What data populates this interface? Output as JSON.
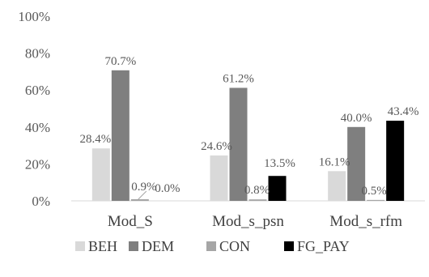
{
  "chart_data": {
    "type": "bar",
    "title": "",
    "xlabel": "",
    "ylabel": "",
    "ylim": [
      0,
      100
    ],
    "ytick_step": 20,
    "ytick_labels": [
      "0%",
      "20%",
      "40%",
      "60%",
      "80%",
      "100%"
    ],
    "grid": false,
    "legend": "bottom",
    "categories": [
      "Mod_S",
      "Mod_s_psn",
      "Mod_s_rfm"
    ],
    "series": [
      {
        "name": "BEH",
        "color": "#d9d9d9",
        "values": [
          28.4,
          24.6,
          16.1
        ],
        "labels": [
          "28.4%",
          "24.6%",
          "16.1%"
        ]
      },
      {
        "name": "DEM",
        "color": "#7f7f7f",
        "values": [
          70.7,
          61.2,
          40.0
        ],
        "labels": [
          "70.7%",
          "61.2%",
          "40.0%"
        ]
      },
      {
        "name": "CON",
        "color": "#a6a6a6",
        "values": [
          0.9,
          0.8,
          0.5
        ],
        "labels": [
          "0.9%",
          "0.8%",
          "0.5%"
        ]
      },
      {
        "name": "FG_PAY",
        "color": "#000000",
        "values": [
          0.0,
          13.5,
          43.4
        ],
        "labels": [
          "0.0%",
          "13.5%",
          "43.4%"
        ]
      }
    ]
  }
}
